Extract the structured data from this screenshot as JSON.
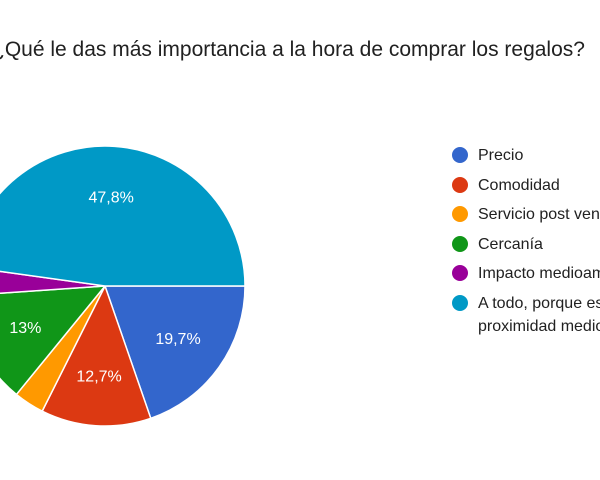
{
  "chart_data": {
    "type": "pie",
    "title": "¿Qué le das más importancia a la hora de comprar los regalos?",
    "slices": [
      {
        "label": "Precio",
        "value": 19.7,
        "display": "19,7%",
        "color": "#3366cc"
      },
      {
        "label": "Comodidad",
        "value": 12.7,
        "display": "12,7%",
        "color": "#dc3912"
      },
      {
        "label": "Servicio post venta",
        "value": 3.5,
        "display": "",
        "color": "#ff9900"
      },
      {
        "label": "Cercanía",
        "value": 13,
        "display": "13%",
        "color": "#109618"
      },
      {
        "label": "Impacto medioambiental",
        "value": 3.3,
        "display": "",
        "color": "#990099"
      },
      {
        "label": "A todo, porque es clave en la proximidad medioambiental",
        "value": 47.8,
        "display": "47,8%",
        "color": "#0099c6"
      }
    ],
    "legend_position": "right"
  }
}
